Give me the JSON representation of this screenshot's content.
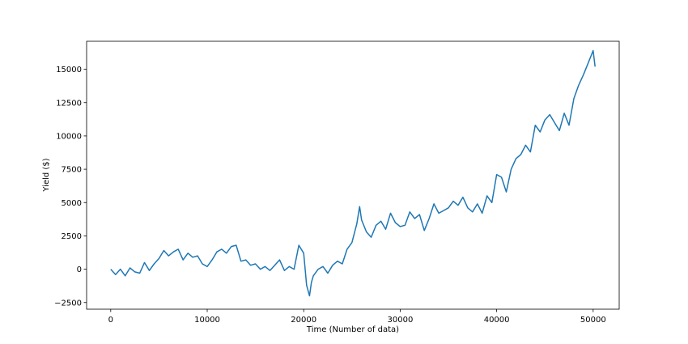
{
  "chart_data": {
    "type": "line",
    "title": "",
    "xlabel": "Time (Number of data)",
    "ylabel": "Yield ($)",
    "xlim": [
      -2500,
      52700
    ],
    "ylim": [
      -3000,
      17100
    ],
    "xticks": [
      0,
      10000,
      20000,
      30000,
      40000,
      50000
    ],
    "xtick_labels": [
      "0",
      "10000",
      "20000",
      "30000",
      "40000",
      "50000"
    ],
    "yticks": [
      -2500,
      0,
      2500,
      5000,
      7500,
      10000,
      12500,
      15000
    ],
    "ytick_labels": [
      "−2500",
      "0",
      "2500",
      "5000",
      "7500",
      "10000",
      "12500",
      "15000"
    ],
    "grid": false,
    "line_color": "#1f77b4",
    "series": [
      {
        "x": [
          0,
          500,
          1000,
          1500,
          2000,
          2500,
          3000,
          3500,
          4000,
          4500,
          5000,
          5500,
          6000,
          6500,
          7000,
          7500,
          8000,
          8500,
          9000,
          9500,
          10000,
          10500,
          11000,
          11500,
          12000,
          12500,
          13000,
          13500,
          14000,
          14500,
          15000,
          15500,
          16000,
          16500,
          17000,
          17500,
          18000,
          18500,
          19000,
          19500,
          20000,
          20300,
          20600,
          20800,
          21000,
          21500,
          22000,
          22500,
          23000,
          23500,
          24000,
          24500,
          25000,
          25500,
          25800,
          26000,
          26500,
          27000,
          27500,
          28000,
          28500,
          29000,
          29500,
          30000,
          30500,
          31000,
          31500,
          32000,
          32500,
          33000,
          33500,
          34000,
          34500,
          35000,
          35500,
          36000,
          36500,
          37000,
          37500,
          38000,
          38500,
          39000,
          39500,
          40000,
          40500,
          41000,
          41500,
          42000,
          42500,
          43000,
          43500,
          44000,
          44500,
          45000,
          45500,
          46000,
          46500,
          47000,
          47500,
          48000,
          48500,
          49000,
          49500,
          50000,
          50200
        ],
        "y": [
          0,
          -400,
          0,
          -500,
          100,
          -200,
          -300,
          500,
          -100,
          400,
          800,
          1400,
          1000,
          1300,
          1500,
          700,
          1200,
          900,
          1000,
          400,
          200,
          700,
          1300,
          1500,
          1200,
          1700,
          1800,
          600,
          700,
          300,
          400,
          0,
          200,
          -100,
          300,
          700,
          -100,
          200,
          0,
          1800,
          1200,
          -1200,
          -2000,
          -1000,
          -500,
          0,
          200,
          -300,
          300,
          600,
          400,
          1500,
          2000,
          3400,
          4700,
          3700,
          2800,
          2400,
          3300,
          3600,
          3000,
          4200,
          3500,
          3200,
          3300,
          4300,
          3800,
          4100,
          2900,
          3800,
          4900,
          4200,
          4400,
          4600,
          5100,
          4800,
          5400,
          4600,
          4300,
          4900,
          4200,
          5500,
          5000,
          7100,
          6900,
          5800,
          7500,
          8300,
          8600,
          9300,
          8800,
          10800,
          10300,
          11200,
          11600,
          11000,
          10400,
          11700,
          10800,
          12800,
          13800,
          14600,
          15500,
          16400,
          15200
        ]
      }
    ]
  }
}
